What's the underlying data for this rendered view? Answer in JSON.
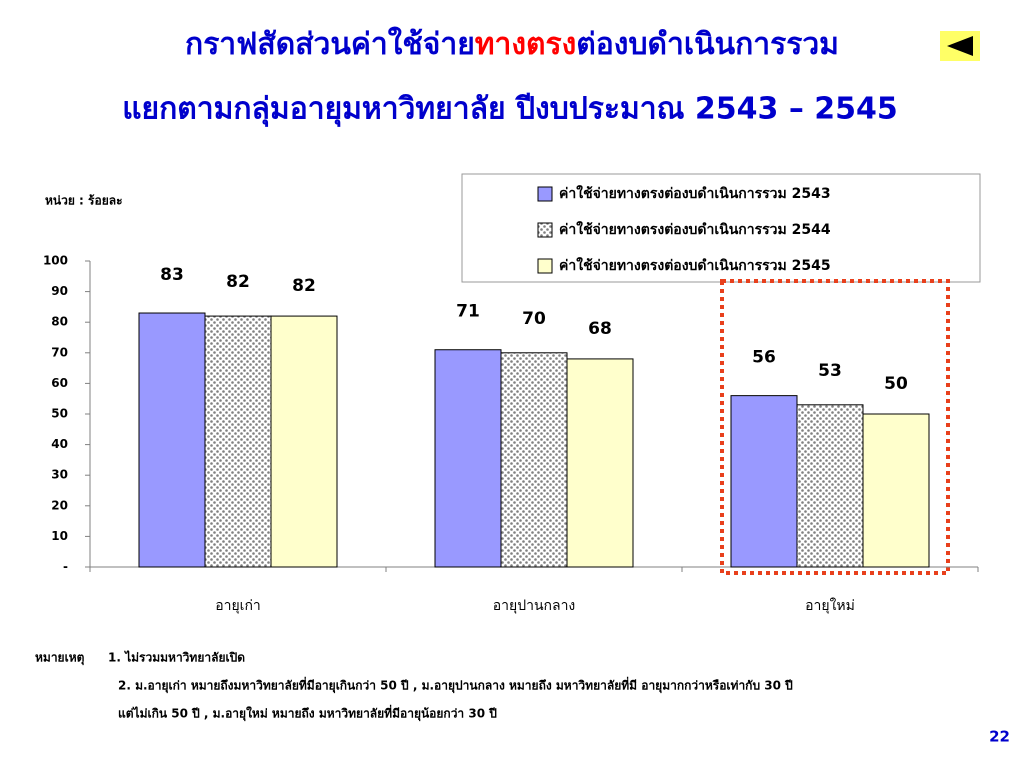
{
  "chart_data": {
    "type": "bar",
    "title": [
      {
        "text": "กราฟสัดส่วนค่าใช้จ่าย",
        "color": "#0000cc"
      },
      {
        "text": "ทางตรง",
        "color": "#ff0000"
      },
      {
        "text": "ต่องบดำเนินการรวม",
        "color": "#0000cc"
      }
    ],
    "subtitle": "แยกตามกลุ่มอายุมหาวิทยาลัย ปีงบประมาณ 2543 – 2545",
    "unit_label": "หน่วย : ร้อยละ",
    "categories": [
      "อายุเก่า",
      "อายุปานกลาง",
      "อายุใหม่"
    ],
    "series": [
      {
        "name": "ค่าใช้จ่ายทางตรงต่องบดำเนินการรวม 2543",
        "color": "#9999ff",
        "values": [
          83,
          71,
          56
        ]
      },
      {
        "name": "ค่าใช้จ่ายทางตรงต่องบดำเนินการรวม 2544",
        "color": "#808080",
        "pattern": "dots",
        "values": [
          82,
          70,
          53
        ]
      },
      {
        "name": "ค่าใช้จ่ายทางตรงต่องบดำเนินการรวม 2545",
        "color": "#ffffcc",
        "values": [
          82,
          68,
          50
        ]
      }
    ],
    "ylim": [
      0,
      100
    ],
    "yticks": [
      {
        "value": 0,
        "label": "-"
      },
      10,
      20,
      30,
      40,
      50,
      60,
      70,
      80,
      90,
      100
    ]
  },
  "notes": {
    "label": "หมายเหตุ",
    "items": [
      "1. ไม่รวมมหาวิทยาลัยเปิด",
      "2. ม.อายุเก่า หมายถึงมหาวิทยาลัยที่มีอายุเกินกว่า 50 ปี , ม.อายุปานกลาง หมายถึง มหาวิทยาลัยที่มี อายุมากกว่าหรือเท่ากับ 30 ปี",
      "แต่ไม่เกิน 50 ปี , ม.อายุใหม่ หมายถึง มหาวิทยาลัยที่มีอายุน้อยกว่า 30 ปี"
    ]
  },
  "page_number": "22"
}
